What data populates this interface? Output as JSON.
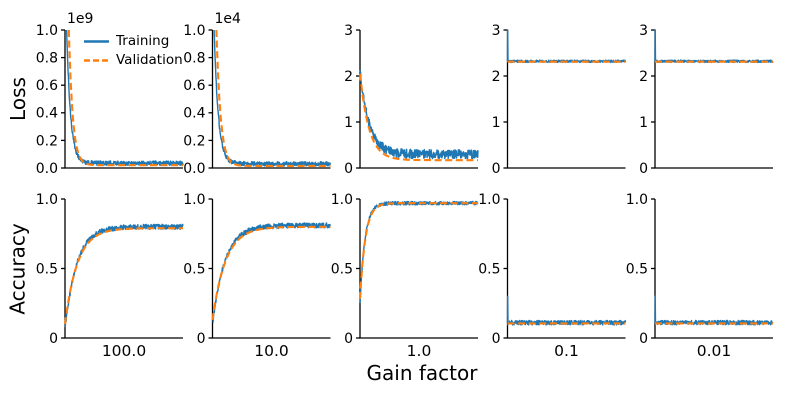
{
  "figure": {
    "background": "#ffffff",
    "xlabel": "Gain factor",
    "row_labels": [
      "Loss",
      "Accuracy"
    ],
    "column_labels": [
      "100.0",
      "10.0",
      "1.0",
      "0.1",
      "0.01"
    ]
  },
  "legend": {
    "location": "upper-left subplot",
    "entries": [
      {
        "label": "Training",
        "color": "#1f77b4",
        "style": "solid"
      },
      {
        "label": "Validation",
        "color": "#ff7f0e",
        "style": "dashed"
      }
    ]
  },
  "chart_data": {
    "type": "line",
    "grid": false,
    "layout": "2 rows x 5 columns",
    "rows": [
      "Loss",
      "Accuracy"
    ],
    "columns": [
      "100.0",
      "10.0",
      "1.0",
      "0.1",
      "0.01"
    ],
    "xlabel": "Gain factor",
    "xticks": [],
    "series_names": [
      "Training",
      "Validation"
    ],
    "colors": {
      "training": "#1f77b4",
      "validation": "#ff7f0e",
      "axis": "#000000"
    },
    "subplots": [
      {
        "id": "loss-gain-100",
        "row": "Loss",
        "column": "100.0",
        "ylim": [
          0,
          1.0
        ],
        "yticks": [
          "0.0",
          "0.2",
          "0.4",
          "0.6",
          "0.8",
          "1.0"
        ],
        "scale_label": "1e9",
        "series": [
          {
            "name": "Training",
            "color": "#1f77b4",
            "style": "solid",
            "start": 1.5,
            "end": 0.035,
            "rate": 30,
            "noise": 0.016,
            "spike": null
          },
          {
            "name": "Validation",
            "color": "#ff7f0e",
            "style": "dashed",
            "start": 2.6,
            "end": 0.02,
            "rate": 30,
            "noise": 0,
            "spike": null
          }
        ]
      },
      {
        "id": "loss-gain-10",
        "row": "Loss",
        "column": "10.0",
        "ylim": [
          0,
          1.0
        ],
        "yticks": [
          "0.0",
          "0.2",
          "0.4",
          "0.6",
          "0.8",
          "1.0"
        ],
        "scale_label": "1e4",
        "series": [
          {
            "name": "Training",
            "color": "#1f77b4",
            "style": "solid",
            "start": 1.45,
            "end": 0.03,
            "rate": 28,
            "noise": 0.016,
            "spike": null
          },
          {
            "name": "Validation",
            "color": "#ff7f0e",
            "style": "dashed",
            "start": 2.5,
            "end": 0.015,
            "rate": 28,
            "noise": 0,
            "spike": null
          }
        ]
      },
      {
        "id": "loss-gain-1",
        "row": "Loss",
        "column": "1.0",
        "ylim": [
          0,
          3
        ],
        "yticks": [
          "0",
          "1",
          "2",
          "3"
        ],
        "scale_label": null,
        "series": [
          {
            "name": "Training",
            "color": "#1f77b4",
            "style": "solid",
            "start": 2.15,
            "end": 0.3,
            "rate": 13,
            "noise": 0.1,
            "spike": null
          },
          {
            "name": "Validation",
            "color": "#ff7f0e",
            "style": "dashed",
            "start": 2.05,
            "end": 0.17,
            "rate": 13,
            "noise": 0,
            "spike": null
          }
        ]
      },
      {
        "id": "loss-gain-0.1",
        "row": "Loss",
        "column": "0.1",
        "ylim": [
          0,
          3
        ],
        "yticks": [
          "0",
          "1",
          "2",
          "3"
        ],
        "scale_label": null,
        "series": [
          {
            "name": "Training",
            "color": "#1f77b4",
            "style": "solid",
            "start": 2.32,
            "end": 2.32,
            "rate": 1,
            "noise": 0.025,
            "spike": 3.0
          },
          {
            "name": "Validation",
            "color": "#ff7f0e",
            "style": "dashed",
            "start": 2.31,
            "end": 2.31,
            "rate": 1,
            "noise": 0,
            "spike": null
          }
        ]
      },
      {
        "id": "loss-gain-0.01",
        "row": "Loss",
        "column": "0.01",
        "ylim": [
          0,
          3
        ],
        "yticks": [
          "0",
          "1",
          "2",
          "3"
        ],
        "scale_label": null,
        "series": [
          {
            "name": "Training",
            "color": "#1f77b4",
            "style": "solid",
            "start": 2.32,
            "end": 2.32,
            "rate": 1,
            "noise": 0.025,
            "spike": 3.0
          },
          {
            "name": "Validation",
            "color": "#ff7f0e",
            "style": "dashed",
            "start": 2.31,
            "end": 2.31,
            "rate": 1,
            "noise": 0,
            "spike": null
          }
        ]
      },
      {
        "id": "acc-gain-100",
        "row": "Accuracy",
        "column": "100.0",
        "ylim": [
          0,
          1.0
        ],
        "yticks": [
          "0",
          "0.5",
          "1.0"
        ],
        "scale_label": null,
        "series": [
          {
            "name": "Training",
            "color": "#1f77b4",
            "style": "solid",
            "start": 0.07,
            "end": 0.8,
            "rate": 10,
            "noise": 0.018,
            "spike": null
          },
          {
            "name": "Validation",
            "color": "#ff7f0e",
            "style": "dashed",
            "start": 0.1,
            "end": 0.79,
            "rate": 9.5,
            "noise": 0,
            "spike": null
          }
        ]
      },
      {
        "id": "acc-gain-10",
        "row": "Accuracy",
        "column": "10.0",
        "ylim": [
          0,
          1.0
        ],
        "yticks": [
          "0",
          "0.5",
          "1.0"
        ],
        "scale_label": null,
        "series": [
          {
            "name": "Training",
            "color": "#1f77b4",
            "style": "solid",
            "start": 0.1,
            "end": 0.81,
            "rate": 9.5,
            "noise": 0.018,
            "spike": null
          },
          {
            "name": "Validation",
            "color": "#ff7f0e",
            "style": "dashed",
            "start": 0.13,
            "end": 0.8,
            "rate": 9,
            "noise": 0,
            "spike": null
          }
        ]
      },
      {
        "id": "acc-gain-1",
        "row": "Accuracy",
        "column": "1.0",
        "ylim": [
          0,
          1.0
        ],
        "yticks": [
          "0",
          "0.5",
          "1.0"
        ],
        "scale_label": null,
        "series": [
          {
            "name": "Training",
            "color": "#1f77b4",
            "style": "solid",
            "start": 0.25,
            "end": 0.97,
            "rate": 24,
            "noise": 0.012,
            "spike": null
          },
          {
            "name": "Validation",
            "color": "#ff7f0e",
            "style": "dashed",
            "start": 0.28,
            "end": 0.97,
            "rate": 22,
            "noise": 0,
            "spike": null
          }
        ]
      },
      {
        "id": "acc-gain-0.1",
        "row": "Accuracy",
        "column": "0.1",
        "ylim": [
          0,
          1.0
        ],
        "yticks": [
          "0",
          "0.5",
          "1.0"
        ],
        "scale_label": null,
        "series": [
          {
            "name": "Training",
            "color": "#1f77b4",
            "style": "solid",
            "start": 0.11,
            "end": 0.11,
            "rate": 1,
            "noise": 0.016,
            "spike": 0.3
          },
          {
            "name": "Validation",
            "color": "#ff7f0e",
            "style": "dashed",
            "start": 0.105,
            "end": 0.105,
            "rate": 1,
            "noise": 0,
            "spike": null
          }
        ]
      },
      {
        "id": "acc-gain-0.01",
        "row": "Accuracy",
        "column": "0.01",
        "ylim": [
          0,
          1.0
        ],
        "yticks": [
          "0",
          "0.5",
          "1.0"
        ],
        "scale_label": null,
        "series": [
          {
            "name": "Training",
            "color": "#1f77b4",
            "style": "solid",
            "start": 0.11,
            "end": 0.11,
            "rate": 1,
            "noise": 0.016,
            "spike": 0.3
          },
          {
            "name": "Validation",
            "color": "#ff7f0e",
            "style": "dashed",
            "start": 0.105,
            "end": 0.105,
            "rate": 1,
            "noise": 0,
            "spike": null
          }
        ]
      }
    ]
  }
}
